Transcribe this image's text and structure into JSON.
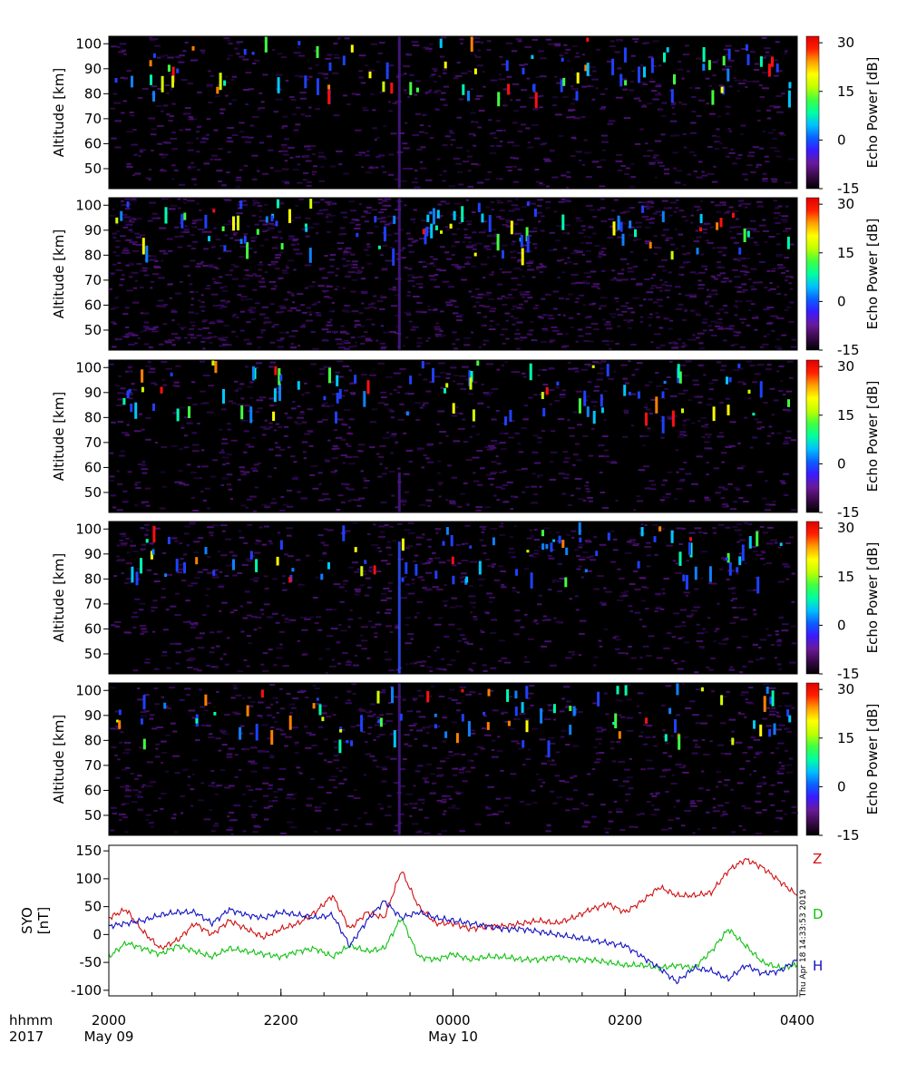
{
  "chart_data": [
    {
      "type": "heatmap",
      "title": "",
      "xlabel": "",
      "ylabel": "Altitude [km]",
      "ylim": [
        42,
        103
      ],
      "xlim": [
        20,
        28
      ],
      "yticks": [
        50,
        60,
        70,
        80,
        90,
        100
      ],
      "ytick_labels": [
        "50",
        "60",
        "70",
        "80",
        "90",
        "100"
      ],
      "colorbar": {
        "label": "Echo Power [dB]",
        "range": [
          -15,
          32
        ],
        "ticks": [
          -15,
          0,
          15,
          30
        ],
        "tick_labels": [
          "-15",
          "0",
          "15",
          "30"
        ]
      }
    },
    {
      "type": "heatmap",
      "title": "",
      "xlabel": "",
      "ylabel": "Altitude [km]",
      "ylim": [
        42,
        103
      ],
      "xlim": [
        20,
        28
      ],
      "yticks": [
        50,
        60,
        70,
        80,
        90,
        100
      ],
      "ytick_labels": [
        "50",
        "60",
        "70",
        "80",
        "90",
        "100"
      ],
      "colorbar": {
        "label": "Echo Power [dB]",
        "range": [
          -15,
          32
        ],
        "ticks": [
          -15,
          0,
          15,
          30
        ],
        "tick_labels": [
          "-15",
          "0",
          "15",
          "30"
        ]
      }
    },
    {
      "type": "heatmap",
      "title": "",
      "xlabel": "",
      "ylabel": "Altitude [km]",
      "ylim": [
        42,
        103
      ],
      "xlim": [
        20,
        28
      ],
      "yticks": [
        50,
        60,
        70,
        80,
        90,
        100
      ],
      "ytick_labels": [
        "50",
        "60",
        "70",
        "80",
        "90",
        "100"
      ],
      "colorbar": {
        "label": "Echo Power [dB]",
        "range": [
          -15,
          32
        ],
        "ticks": [
          -15,
          0,
          15,
          30
        ],
        "tick_labels": [
          "-15",
          "0",
          "15",
          "30"
        ]
      }
    },
    {
      "type": "heatmap",
      "title": "",
      "xlabel": "",
      "ylabel": "Altitude [km]",
      "ylim": [
        42,
        103
      ],
      "xlim": [
        20,
        28
      ],
      "yticks": [
        50,
        60,
        70,
        80,
        90,
        100
      ],
      "ytick_labels": [
        "50",
        "60",
        "70",
        "80",
        "90",
        "100"
      ],
      "colorbar": {
        "label": "Echo Power [dB]",
        "range": [
          -15,
          32
        ],
        "ticks": [
          -15,
          0,
          15,
          30
        ],
        "tick_labels": [
          "-15",
          "0",
          "15",
          "30"
        ]
      }
    },
    {
      "type": "heatmap",
      "title": "",
      "xlabel": "",
      "ylabel": "Altitude [km]",
      "ylim": [
        42,
        103
      ],
      "xlim": [
        20,
        28
      ],
      "yticks": [
        50,
        60,
        70,
        80,
        90,
        100
      ],
      "ytick_labels": [
        "50",
        "60",
        "70",
        "80",
        "90",
        "100"
      ],
      "colorbar": {
        "label": "Echo Power [dB]",
        "range": [
          -15,
          32
        ],
        "ticks": [
          -15,
          0,
          15,
          30
        ],
        "tick_labels": [
          "-15",
          "0",
          "15",
          "30"
        ]
      }
    },
    {
      "type": "line",
      "title": "",
      "ylabel": "SYO [nT]",
      "ylim": [
        -110,
        160
      ],
      "xlim": [
        20,
        28
      ],
      "yticks": [
        -100,
        -50,
        0,
        50,
        100,
        150
      ],
      "ytick_labels": [
        "-100",
        "-50",
        "0",
        "50",
        "100",
        "150"
      ],
      "timestamp": "Thu Apr 18 14:33:53 2019",
      "series": [
        {
          "name": "Z",
          "color": "#d01010",
          "x": [
            20.0,
            20.2,
            20.4,
            20.6,
            20.8,
            21.0,
            21.2,
            21.4,
            21.6,
            21.8,
            22.0,
            22.2,
            22.4,
            22.6,
            22.8,
            23.0,
            23.2,
            23.4,
            23.6,
            23.8,
            24.0,
            24.2,
            24.4,
            24.6,
            24.8,
            25.0,
            25.2,
            25.4,
            25.6,
            25.8,
            26.0,
            26.2,
            26.4,
            26.6,
            26.8,
            27.0,
            27.2,
            27.4,
            27.6,
            27.8,
            28.0
          ],
          "y": [
            30,
            45,
            5,
            -25,
            -10,
            20,
            0,
            25,
            10,
            -5,
            10,
            20,
            40,
            70,
            10,
            40,
            30,
            115,
            50,
            20,
            20,
            10,
            15,
            15,
            20,
            25,
            20,
            30,
            45,
            55,
            40,
            60,
            85,
            70,
            70,
            75,
            115,
            135,
            120,
            95,
            70
          ]
        },
        {
          "name": "D",
          "color": "#10c010",
          "x": [
            20.0,
            20.2,
            20.4,
            20.6,
            20.8,
            21.0,
            21.2,
            21.4,
            21.6,
            21.8,
            22.0,
            22.2,
            22.4,
            22.6,
            22.8,
            23.0,
            23.2,
            23.4,
            23.6,
            23.8,
            24.0,
            24.2,
            24.4,
            24.6,
            24.8,
            25.0,
            25.2,
            25.4,
            25.6,
            25.8,
            26.0,
            26.2,
            26.4,
            26.6,
            26.8,
            27.0,
            27.2,
            27.4,
            27.6,
            27.8,
            28.0
          ],
          "y": [
            -40,
            -15,
            -25,
            -35,
            -20,
            -30,
            -40,
            -25,
            -30,
            -35,
            -40,
            -30,
            -25,
            -40,
            -20,
            -30,
            -25,
            30,
            -40,
            -45,
            -35,
            -45,
            -40,
            -40,
            -45,
            -45,
            -40,
            -45,
            -45,
            -50,
            -55,
            -55,
            -60,
            -55,
            -60,
            -30,
            10,
            -20,
            -50,
            -60,
            -55
          ]
        },
        {
          "name": "H",
          "color": "#1010c0",
          "x": [
            20.0,
            20.2,
            20.4,
            20.6,
            20.8,
            21.0,
            21.2,
            21.4,
            21.6,
            21.8,
            22.0,
            22.2,
            22.4,
            22.6,
            22.8,
            23.0,
            23.2,
            23.4,
            23.6,
            23.8,
            24.0,
            24.2,
            24.4,
            24.6,
            24.8,
            25.0,
            25.2,
            25.4,
            25.6,
            25.8,
            26.0,
            26.2,
            26.4,
            26.6,
            26.8,
            27.0,
            27.2,
            27.4,
            27.6,
            27.8,
            28.0
          ],
          "y": [
            15,
            20,
            25,
            35,
            40,
            40,
            20,
            45,
            35,
            30,
            40,
            35,
            30,
            35,
            -20,
            25,
            60,
            30,
            40,
            30,
            25,
            20,
            15,
            10,
            10,
            5,
            0,
            -5,
            -10,
            -15,
            -20,
            -40,
            -60,
            -85,
            -60,
            -65,
            -80,
            -55,
            -70,
            -65,
            -45
          ]
        }
      ]
    }
  ],
  "xaxis": {
    "prefix_top": "hhmm",
    "prefix_bottom": "2017",
    "ticks": [
      {
        "x": 20,
        "label": "2000",
        "date": "May 09"
      },
      {
        "x": 22,
        "label": "2200",
        "date": ""
      },
      {
        "x": 24,
        "label": "0000",
        "date": "May 10"
      },
      {
        "x": 26,
        "label": "0200",
        "date": ""
      },
      {
        "x": 28,
        "label": "0400",
        "date": ""
      }
    ]
  },
  "colors": {
    "colorbar_stops": [
      "#000000",
      "#3a0a4a",
      "#6a1a9a",
      "#3a1aff",
      "#0a60ff",
      "#00c0ff",
      "#00ffa0",
      "#40ff40",
      "#c0ff00",
      "#ffff00",
      "#ffa000",
      "#ff2000",
      "#e00000"
    ]
  }
}
